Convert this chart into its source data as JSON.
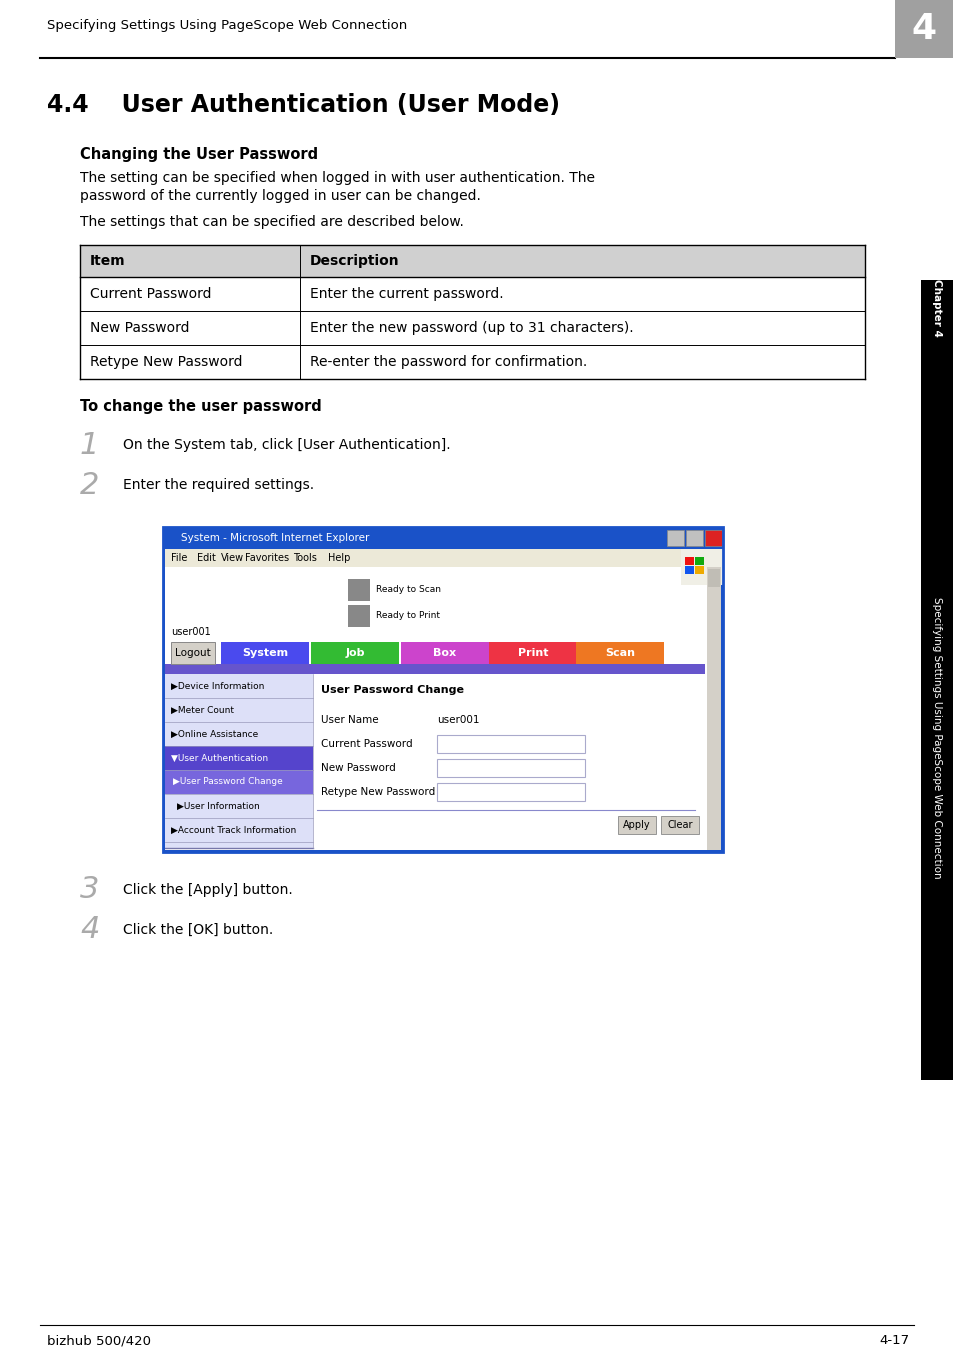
{
  "page_header": "Specifying Settings Using PageScope Web Connection",
  "chapter_num": "4",
  "section_title": "4.4    User Authentication (User Mode)",
  "subsection_title": "Changing the User Password",
  "para1_line1": "The setting can be specified when logged in with user authentication. The",
  "para1_line2": "password of the currently logged in user can be changed.",
  "para2": "The settings that can be specified are described below.",
  "table_headers": [
    "Item",
    "Description"
  ],
  "table_rows": [
    [
      "Current Password",
      "Enter the current password."
    ],
    [
      "New Password",
      "Enter the new password (up to 31 characters)."
    ],
    [
      "Retype New Password",
      "Re-enter the password for confirmation."
    ]
  ],
  "bold_heading2": "To change the user password",
  "step1_num": "1",
  "step1_text": "On the System tab, click [User Authentication].",
  "step2_num": "2",
  "step2_text": "Enter the required settings.",
  "step3_num": "3",
  "step3_text": "Click the [Apply] button.",
  "step4_num": "4",
  "step4_text": "Click the [OK] button.",
  "footer_left": "bizhub 500/420",
  "footer_right": "4-17",
  "sidebar_text": "Specifying Settings Using PageScope Web Connection",
  "sidebar_chapter": "Chapter 4",
  "bg_color": "#ffffff",
  "table_header_bg": "#d0d0d0",
  "chapter_box_color": "#a0a0a0",
  "ie_title_bar_color": "#1a52c8",
  "ie_menu_bg": "#ece9d8",
  "ie_content_bg": "#ffffff",
  "ie_nav_system": "#4a4aee",
  "ie_nav_job": "#33bb33",
  "ie_nav_box": "#cc44cc",
  "ie_nav_print": "#ee3344",
  "ie_nav_scan": "#ee7722",
  "ie_purple_bar": "#6655cc",
  "ie_sidebar_bg": "#dde0f8",
  "ie_selected_bg": "#5544cc",
  "ie_subitem_bg": "#7766dd",
  "sidebar_bg": "#000000"
}
